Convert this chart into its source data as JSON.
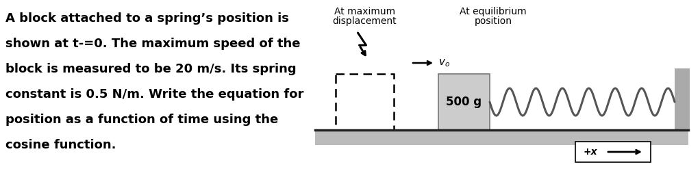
{
  "background_color": "#ffffff",
  "text_left": [
    "A block attached to a spring’s position is",
    "shown at t-=0. The maximum speed of the",
    "block is measured to be 20 m/s. Its spring",
    "constant is 0.5 N/m. Write the equation for",
    "position as a function of time using the",
    "cosine function."
  ],
  "label_max_disp_1": "At maximum",
  "label_max_disp_2": "displacement",
  "label_equil_1": "At equilibrium",
  "label_equil_2": "position",
  "label_mass": "500 g",
  "label_x": "+x",
  "floor_color": "#bbbbbb",
  "floor_top_color": "#333333",
  "wall_color": "#aaaaaa",
  "block_solid_color": "#cccccc",
  "block_dashed_color": "#000000",
  "spring_color": "#555555",
  "text_color": "#000000",
  "font_size_main": 13,
  "font_size_label": 10,
  "font_size_mass": 12
}
